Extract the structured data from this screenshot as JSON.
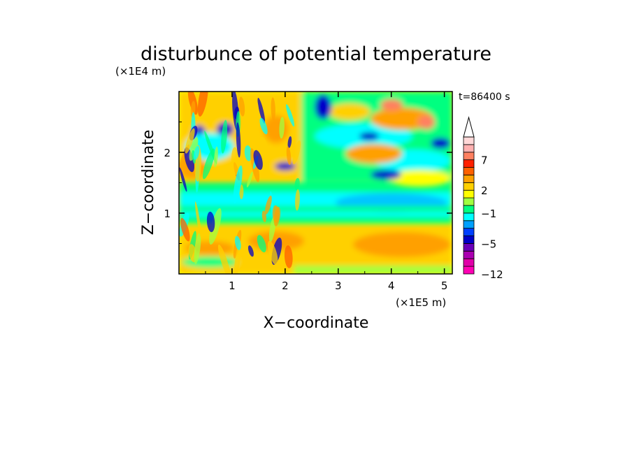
{
  "chart_data": {
    "type": "heatmap",
    "title": "disturbunce of potential temperature",
    "time_label": "t=86400 s",
    "xlabel": "X−coordinate",
    "ylabel": "Z−coordinate",
    "x_unit": "(×1E5 m)",
    "y_unit": "(×1E4 m)",
    "xlim": [
      0,
      5.15
    ],
    "ylim": [
      0,
      3.0
    ],
    "x_ticks": [
      {
        "value": 1,
        "label": "1"
      },
      {
        "value": 2,
        "label": "2"
      },
      {
        "value": 3,
        "label": "3"
      },
      {
        "value": 4,
        "label": "4"
      },
      {
        "value": 5,
        "label": "5"
      }
    ],
    "y_ticks": [
      {
        "value": 1,
        "label": "1"
      },
      {
        "value": 2,
        "label": "2"
      }
    ],
    "colorbar": {
      "levels_bottom_to_top": [
        -12,
        -10,
        -8,
        -7,
        -5,
        -4,
        -3,
        -2,
        -1,
        0,
        1,
        2,
        3,
        4,
        5,
        7,
        8,
        9,
        10
      ],
      "tick_labels": [
        {
          "value": -12,
          "label": "−12"
        },
        {
          "value": -5,
          "label": "−5"
        },
        {
          "value": -1,
          "label": "−1"
        },
        {
          "value": 2,
          "label": "2"
        },
        {
          "value": 7,
          "label": "7"
        }
      ],
      "colors_bottom_to_top": [
        "#ff00b4",
        "#e000a8",
        "#aa00b0",
        "#6a00b8",
        "#0000c8",
        "#0040ff",
        "#00a0ff",
        "#00ffff",
        "#00ff80",
        "#a0ff40",
        "#ffff00",
        "#ffd000",
        "#ffa000",
        "#ff6000",
        "#ff2000",
        "#ff8060",
        "#ffb0b0",
        "#ffd8d8"
      ],
      "extend_top": true
    },
    "grid": false
  }
}
